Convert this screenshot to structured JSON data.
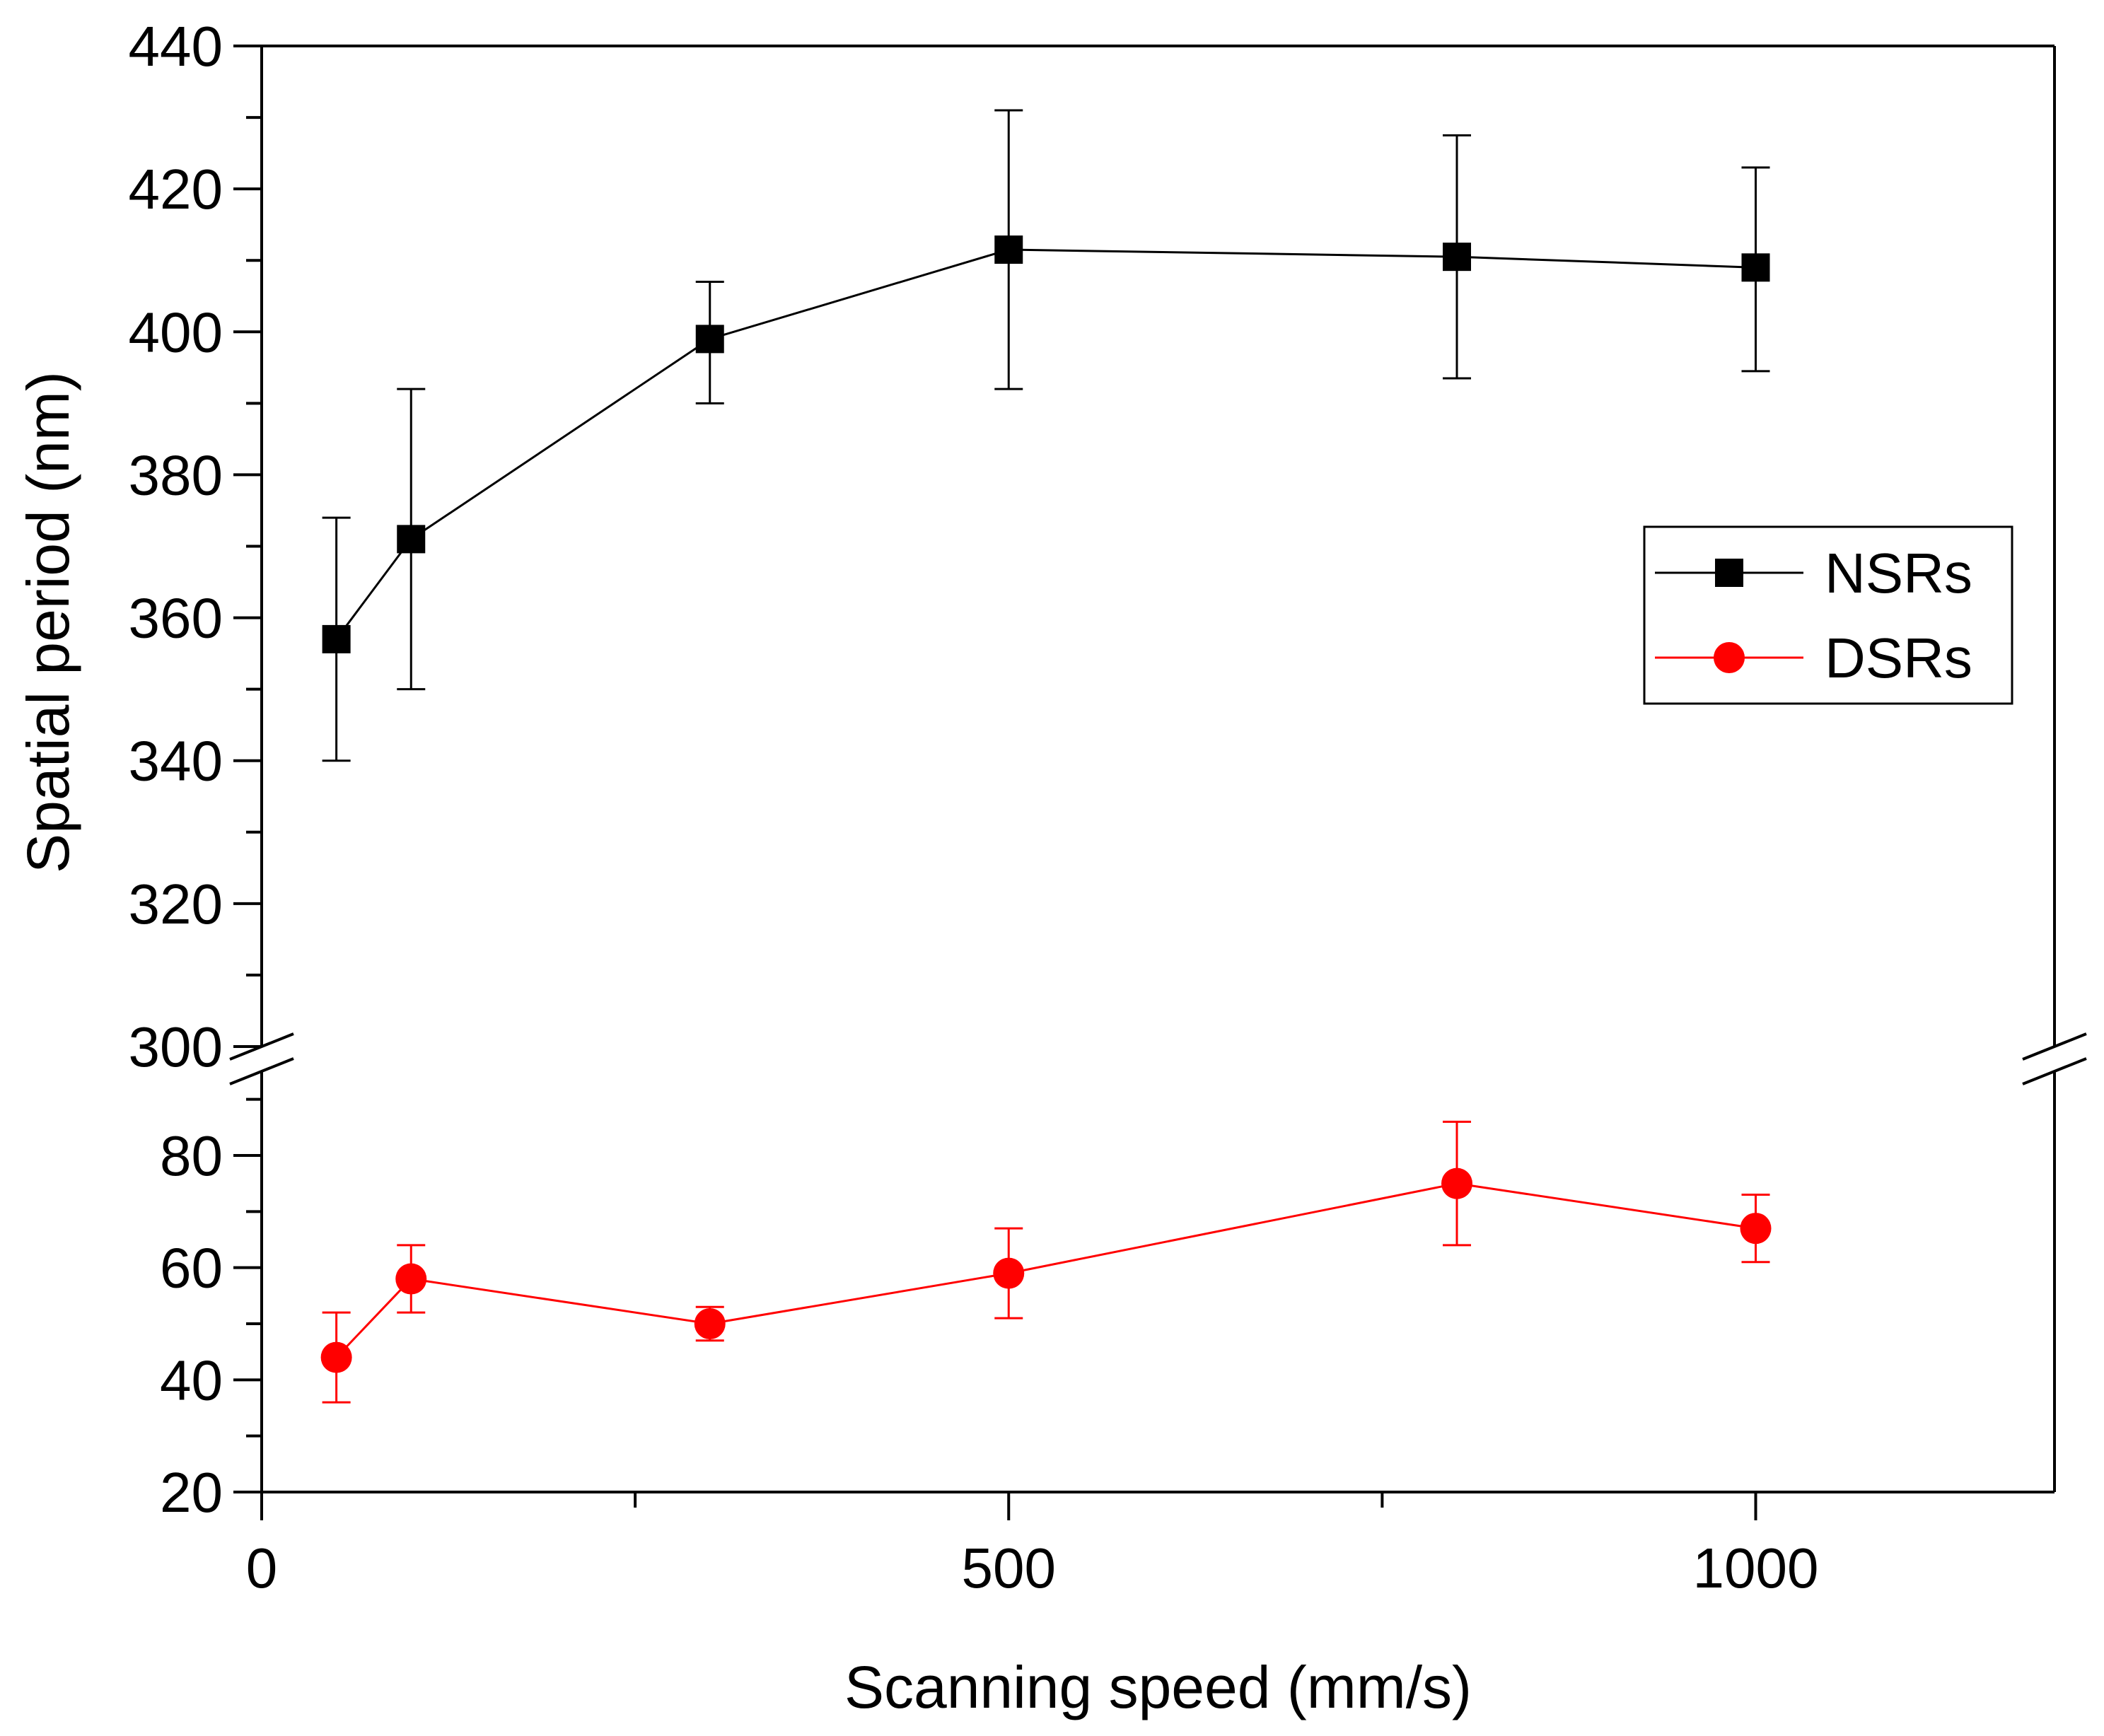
{
  "chart_data": {
    "type": "line",
    "xlabel": "Scanning speed (mm/s)",
    "ylabel": "Spatial period (nm)",
    "xlim": [
      0,
      1200
    ],
    "x_ticks": [
      "0",
      "500",
      "1000"
    ],
    "x_tick_values": [
      0,
      500,
      1000
    ],
    "y_axis_break": true,
    "ylim_upper": [
      300,
      440
    ],
    "ylim_lower": [
      20,
      95
    ],
    "y_ticks_upper": [
      "300",
      "320",
      "340",
      "360",
      "380",
      "400",
      "420",
      "440"
    ],
    "y_tick_values_upper": [
      300,
      320,
      340,
      360,
      380,
      400,
      420,
      440
    ],
    "y_ticks_lower": [
      "20",
      "40",
      "60",
      "80"
    ],
    "y_tick_values_lower": [
      20,
      40,
      60,
      80
    ],
    "legend_position": "right, mid-upper",
    "series": [
      {
        "name": "NSRs",
        "marker": "square",
        "color": "#000000",
        "x": [
          50,
          100,
          300,
          500,
          800,
          1000
        ],
        "y": [
          357,
          371,
          399,
          411.5,
          410.5,
          409
        ],
        "err_low": [
          340,
          350,
          390,
          392,
          393.5,
          394.5
        ],
        "err_high": [
          374,
          392,
          407,
          431,
          427.5,
          423
        ]
      },
      {
        "name": "DSRs",
        "marker": "circle",
        "color": "#ff0000",
        "x": [
          50,
          100,
          300,
          500,
          800,
          1000
        ],
        "y": [
          44,
          58,
          50,
          59,
          75,
          67
        ],
        "err_low": [
          36,
          52,
          47,
          51,
          64,
          61
        ],
        "err_high": [
          52,
          64,
          53,
          67,
          86,
          73
        ]
      }
    ]
  }
}
